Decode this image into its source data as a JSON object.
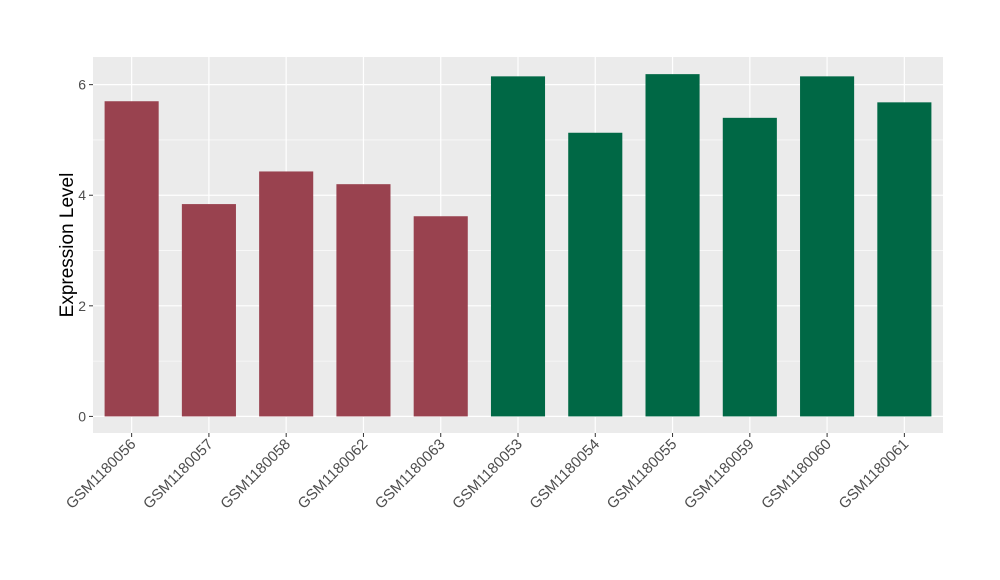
{
  "chart_data": {
    "type": "bar",
    "title": "",
    "xlabel": "",
    "ylabel": "Expression Level",
    "categories": [
      "GSM1180056",
      "GSM1180057",
      "GSM1180058",
      "GSM1180062",
      "GSM1180063",
      "GSM1180053",
      "GSM1180054",
      "GSM1180055",
      "GSM1180059",
      "GSM1180060",
      "GSM1180061"
    ],
    "values": [
      5.7,
      3.84,
      4.43,
      4.2,
      3.62,
      6.15,
      5.13,
      6.19,
      5.4,
      6.15,
      5.68
    ],
    "bar_colors": [
      "#99424f",
      "#99424f",
      "#99424f",
      "#99424f",
      "#99424f",
      "#006845",
      "#006845",
      "#006845",
      "#006845",
      "#006845",
      "#006845"
    ],
    "yticks": [
      0,
      2,
      4,
      6
    ],
    "ylim": [
      -0.3,
      6.5
    ],
    "grid": true,
    "panel_background": "#ebebeb",
    "grid_color": "#ffffff",
    "legend": "none"
  }
}
